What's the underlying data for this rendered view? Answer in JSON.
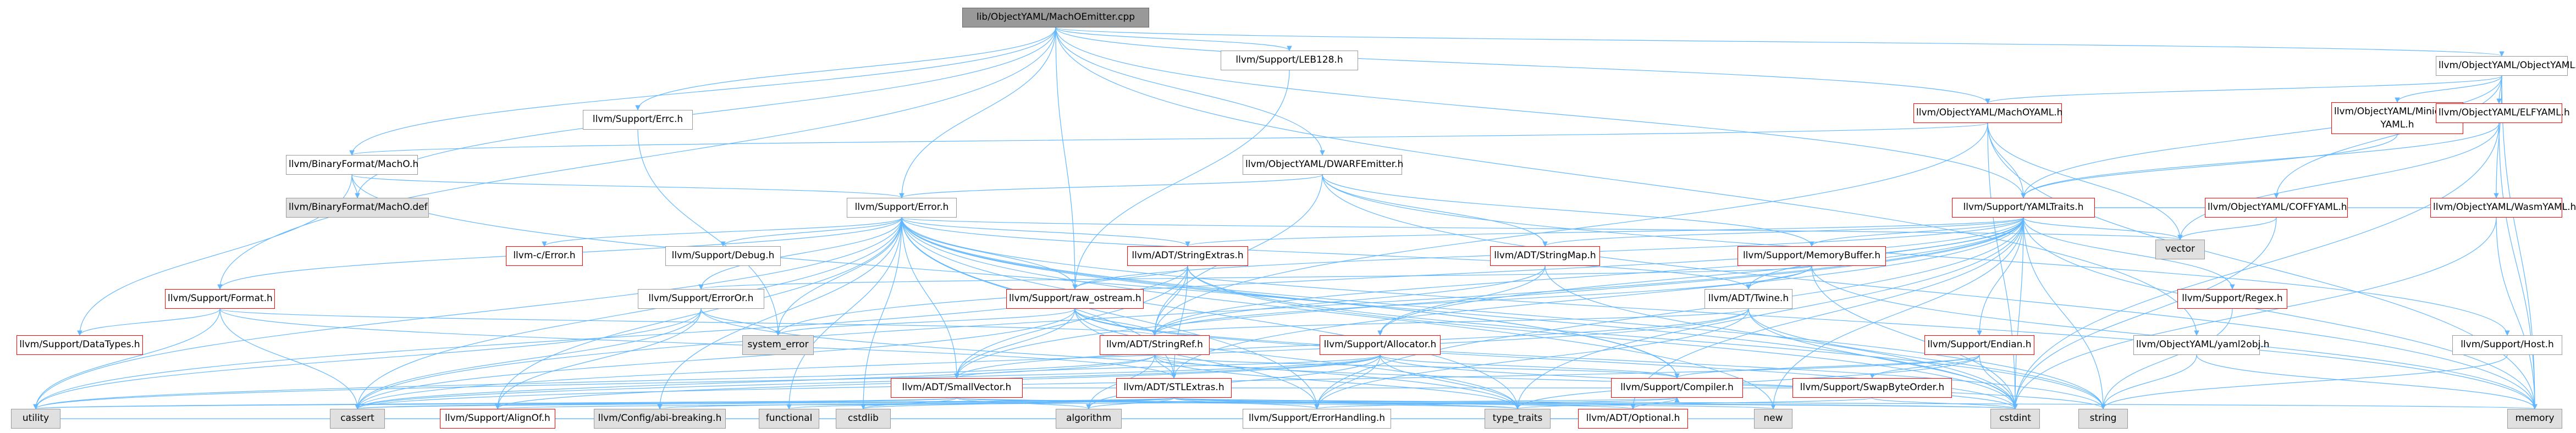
{
  "colors": {
    "edge": "#63b8ff",
    "border_normal": "#999999",
    "border_truncated": "#ff0000",
    "external_fill": "#e0e0e0",
    "root_fill": "#999999"
  },
  "nodes": {
    "root": "lib/ObjectYAML/MachOEmitter.cpp",
    "leb128": "llvm/Support/LEB128.h",
    "objectyaml": "llvm/ObjectYAML/ObjectYAML.h",
    "machoyaml": "llvm/ObjectYAML/MachOYAML.h",
    "minidumpyaml": "llvm/ObjectYAML/Minidump\nYAML.h",
    "elfyaml": "llvm/ObjectYAML/ELFYAML.h",
    "support_errc": "llvm/Support/Errc.h",
    "binformat_macho": "llvm/BinaryFormat/MachO.h",
    "dwarfemitter": "llvm/ObjectYAML/DWARFEmitter.h",
    "macho_def": "llvm/BinaryFormat/MachO.def",
    "support_error": "llvm/Support/Error.h",
    "yamltraits": "llvm/Support/YAMLTraits.h",
    "coffyaml": "llvm/ObjectYAML/COFFYAML.h",
    "wasmyaml": "llvm/ObjectYAML/WasmYAML.h",
    "vector": "vector",
    "c_error": "llvm-c/Error.h",
    "debug": "llvm/Support/Debug.h",
    "stringextras": "llvm/ADT/StringExtras.h",
    "stringmap": "llvm/ADT/StringMap.h",
    "memorybuffer": "llvm/Support/MemoryBuffer.h",
    "format": "llvm/Support/Format.h",
    "erroror": "llvm/Support/ErrorOr.h",
    "raw_ostream": "llvm/Support/raw_ostream.h",
    "twine": "llvm/ADT/Twine.h",
    "regex": "llvm/Support/Regex.h",
    "datatypes": "llvm/Support/DataTypes.h",
    "system_error": "system_error",
    "stringref": "llvm/ADT/StringRef.h",
    "allocator": "llvm/Support/Allocator.h",
    "endian": "llvm/Support/Endian.h",
    "yaml2obj": "llvm/ObjectYAML/yaml2obj.h",
    "host": "llvm/Support/Host.h",
    "smallvector": "llvm/ADT/SmallVector.h",
    "stlextras": "llvm/ADT/STLExtras.h",
    "swapbyteorder": "llvm/Support/SwapByteOrder.h",
    "alignof": "llvm/Support/AlignOf.h",
    "abibreaking": "llvm/Config/abi-breaking.h",
    "functional": "functional",
    "cstdlib": "cstdlib",
    "algorithm": "algorithm",
    "type_traits": "type_traits",
    "errorhandling": "llvm/Support/ErrorHandling.h",
    "optional": "llvm/ADT/Optional.h",
    "cstdint": "cstdint",
    "new": "new",
    "utility": "utility",
    "cassert": "cassert",
    "compiler": "llvm/Support/Compiler.h",
    "string": "string",
    "memory": "memory"
  }
}
